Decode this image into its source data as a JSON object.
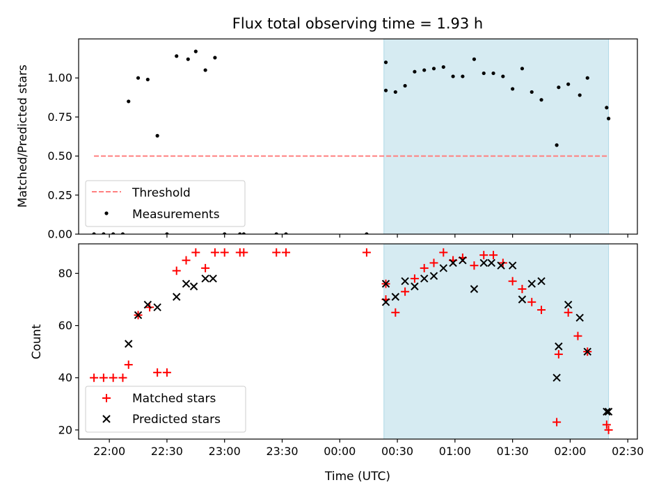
{
  "chart_data": [
    {
      "type": "scatter",
      "title": "Flux total observing time = 1.93 h",
      "xlabel": "",
      "ylabel": "Matched/Predicted stars",
      "xlim": [
        "21:44",
        "02:35"
      ],
      "ylim": [
        0,
        1.25
      ],
      "yticks": [
        "0.00",
        "0.25",
        "0.50",
        "0.75",
        "1.00"
      ],
      "shaded_region": {
        "start": "00:23",
        "end": "02:20",
        "color": "#add8e6"
      },
      "threshold": {
        "name": "Threshold",
        "value": 0.5,
        "x_start": "21:52",
        "x_end": "02:20",
        "color": "#ff7f7f"
      },
      "legend": {
        "position": "lower-left"
      },
      "series": [
        {
          "name": "Measurements",
          "color": "#000000",
          "points": [
            {
              "x": "21:52",
              "y": 0.0
            },
            {
              "x": "21:57",
              "y": 0.0
            },
            {
              "x": "22:02",
              "y": 0.0
            },
            {
              "x": "22:07",
              "y": 0.0
            },
            {
              "x": "22:10",
              "y": 0.85
            },
            {
              "x": "22:15",
              "y": 1.0
            },
            {
              "x": "22:20",
              "y": 0.99
            },
            {
              "x": "22:25",
              "y": 0.63
            },
            {
              "x": "22:30",
              "y": 0.0
            },
            {
              "x": "22:35",
              "y": 1.14
            },
            {
              "x": "22:41",
              "y": 1.12
            },
            {
              "x": "22:45",
              "y": 1.17
            },
            {
              "x": "22:50",
              "y": 1.05
            },
            {
              "x": "22:55",
              "y": 1.13
            },
            {
              "x": "23:00",
              "y": 0.0
            },
            {
              "x": "23:08",
              "y": 0.0
            },
            {
              "x": "23:10",
              "y": 0.0
            },
            {
              "x": "23:27",
              "y": 0.0
            },
            {
              "x": "23:32",
              "y": 0.0
            },
            {
              "x": "00:14",
              "y": 0.0
            },
            {
              "x": "00:24",
              "y": 1.1
            },
            {
              "x": "00:24",
              "y": 0.92
            },
            {
              "x": "00:29",
              "y": 0.91
            },
            {
              "x": "00:34",
              "y": 0.95
            },
            {
              "x": "00:39",
              "y": 1.04
            },
            {
              "x": "00:44",
              "y": 1.05
            },
            {
              "x": "00:49",
              "y": 1.06
            },
            {
              "x": "00:54",
              "y": 1.07
            },
            {
              "x": "00:59",
              "y": 1.01
            },
            {
              "x": "01:04",
              "y": 1.01
            },
            {
              "x": "01:10",
              "y": 1.12
            },
            {
              "x": "01:15",
              "y": 1.03
            },
            {
              "x": "01:20",
              "y": 1.03
            },
            {
              "x": "01:25",
              "y": 1.01
            },
            {
              "x": "01:30",
              "y": 0.93
            },
            {
              "x": "01:35",
              "y": 1.06
            },
            {
              "x": "01:40",
              "y": 0.91
            },
            {
              "x": "01:45",
              "y": 0.86
            },
            {
              "x": "01:53",
              "y": 0.57
            },
            {
              "x": "01:54",
              "y": 0.94
            },
            {
              "x": "01:59",
              "y": 0.96
            },
            {
              "x": "02:05",
              "y": 0.89
            },
            {
              "x": "02:09",
              "y": 1.0
            },
            {
              "x": "02:19",
              "y": 0.81
            },
            {
              "x": "02:20",
              "y": 0.74
            }
          ]
        }
      ]
    },
    {
      "type": "scatter",
      "title": "",
      "xlabel": "Time (UTC)",
      "ylabel": "Count",
      "xlim": [
        "21:44",
        "02:35"
      ],
      "ylim": [
        16.5,
        91.3
      ],
      "yticks": [
        "20",
        "40",
        "60",
        "80"
      ],
      "xticks": [
        "22:00",
        "22:30",
        "23:00",
        "23:30",
        "00:00",
        "00:30",
        "01:00",
        "01:30",
        "02:00",
        "02:30"
      ],
      "shaded_region": {
        "start": "00:23",
        "end": "02:20",
        "color": "#add8e6"
      },
      "legend": {
        "position": "lower-left"
      },
      "series": [
        {
          "name": "Matched stars",
          "marker": "plus",
          "color": "#ff0000",
          "points": [
            {
              "x": "21:52",
              "y": 40
            },
            {
              "x": "21:57",
              "y": 40
            },
            {
              "x": "22:02",
              "y": 40
            },
            {
              "x": "22:07",
              "y": 40
            },
            {
              "x": "22:10",
              "y": 45
            },
            {
              "x": "22:15",
              "y": 64
            },
            {
              "x": "22:21",
              "y": 67
            },
            {
              "x": "22:25",
              "y": 42
            },
            {
              "x": "22:30",
              "y": 42
            },
            {
              "x": "22:35",
              "y": 81
            },
            {
              "x": "22:40",
              "y": 85
            },
            {
              "x": "22:45",
              "y": 88
            },
            {
              "x": "22:50",
              "y": 82
            },
            {
              "x": "22:55",
              "y": 88
            },
            {
              "x": "23:00",
              "y": 88
            },
            {
              "x": "23:08",
              "y": 88
            },
            {
              "x": "23:10",
              "y": 88
            },
            {
              "x": "23:27",
              "y": 88
            },
            {
              "x": "23:32",
              "y": 88
            },
            {
              "x": "00:14",
              "y": 88
            },
            {
              "x": "00:24",
              "y": 76
            },
            {
              "x": "00:24",
              "y": 70
            },
            {
              "x": "00:29",
              "y": 65
            },
            {
              "x": "00:34",
              "y": 73
            },
            {
              "x": "00:39",
              "y": 78
            },
            {
              "x": "00:44",
              "y": 82
            },
            {
              "x": "00:49",
              "y": 84
            },
            {
              "x": "00:54",
              "y": 88
            },
            {
              "x": "00:59",
              "y": 85
            },
            {
              "x": "01:04",
              "y": 86
            },
            {
              "x": "01:10",
              "y": 83
            },
            {
              "x": "01:15",
              "y": 87
            },
            {
              "x": "01:20",
              "y": 87
            },
            {
              "x": "01:25",
              "y": 84
            },
            {
              "x": "01:30",
              "y": 77
            },
            {
              "x": "01:35",
              "y": 74
            },
            {
              "x": "01:40",
              "y": 69
            },
            {
              "x": "01:45",
              "y": 66
            },
            {
              "x": "01:53",
              "y": 23
            },
            {
              "x": "01:54",
              "y": 49
            },
            {
              "x": "01:59",
              "y": 65
            },
            {
              "x": "02:04",
              "y": 56
            },
            {
              "x": "02:09",
              "y": 50
            },
            {
              "x": "02:19",
              "y": 22
            },
            {
              "x": "02:20",
              "y": 20
            }
          ]
        },
        {
          "name": "Predicted stars",
          "marker": "x",
          "color": "#000000",
          "points": [
            {
              "x": "22:10",
              "y": 53
            },
            {
              "x": "22:15",
              "y": 64
            },
            {
              "x": "22:20",
              "y": 68
            },
            {
              "x": "22:25",
              "y": 67
            },
            {
              "x": "22:35",
              "y": 71
            },
            {
              "x": "22:40",
              "y": 76
            },
            {
              "x": "22:44",
              "y": 75
            },
            {
              "x": "22:50",
              "y": 78
            },
            {
              "x": "22:54",
              "y": 78
            },
            {
              "x": "00:24",
              "y": 69
            },
            {
              "x": "00:24",
              "y": 76
            },
            {
              "x": "00:29",
              "y": 71
            },
            {
              "x": "00:34",
              "y": 77
            },
            {
              "x": "00:39",
              "y": 75
            },
            {
              "x": "00:44",
              "y": 78
            },
            {
              "x": "00:49",
              "y": 79
            },
            {
              "x": "00:54",
              "y": 82
            },
            {
              "x": "00:59",
              "y": 84
            },
            {
              "x": "01:04",
              "y": 85
            },
            {
              "x": "01:10",
              "y": 74
            },
            {
              "x": "01:15",
              "y": 84
            },
            {
              "x": "01:19",
              "y": 84
            },
            {
              "x": "01:24",
              "y": 83
            },
            {
              "x": "01:30",
              "y": 83
            },
            {
              "x": "01:35",
              "y": 70
            },
            {
              "x": "01:40",
              "y": 76
            },
            {
              "x": "01:45",
              "y": 77
            },
            {
              "x": "01:53",
              "y": 40
            },
            {
              "x": "01:54",
              "y": 52
            },
            {
              "x": "01:59",
              "y": 68
            },
            {
              "x": "02:05",
              "y": 63
            },
            {
              "x": "02:09",
              "y": 50
            },
            {
              "x": "02:19",
              "y": 27
            },
            {
              "x": "02:20",
              "y": 27
            }
          ]
        }
      ]
    }
  ]
}
